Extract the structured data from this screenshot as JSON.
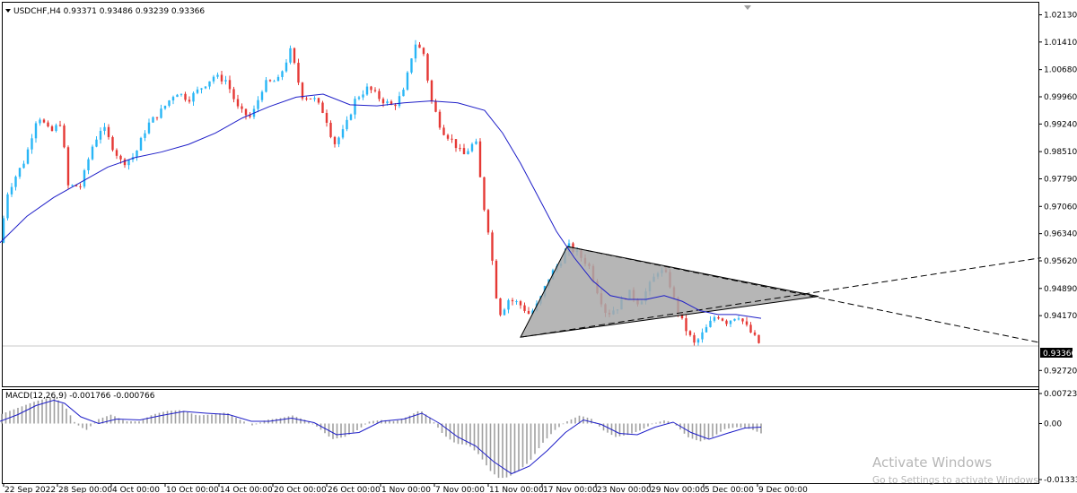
{
  "main_header": "USDCHF,H4  0.93371 0.93486 0.93239 0.93366",
  "macd_header": "MACD(12,26,9) -0.001766 -0.000766",
  "current_price_label": "0.93366",
  "watermark": {
    "title": "Activate Windows",
    "subtitle": "Go to Settings to activate Windows."
  },
  "colors": {
    "bull": "#29b6f6",
    "bear": "#e53935",
    "ma": "#1e1ec8",
    "triangle_fill": "#a9a9a9",
    "macd_hist": "#a0a0a0",
    "macd_signal": "#1e1ec8",
    "grid": "#c8c8c8"
  },
  "chart_data": [
    {
      "type": "candlestick",
      "symbol": "USDCHF",
      "timeframe": "H4",
      "ohlc_last": {
        "open": 0.93371,
        "high": 0.93486,
        "low": 0.93239,
        "close": 0.93366
      },
      "ylim": [
        0.923,
        1.0245
      ],
      "y_ticks": [
        "1.02130",
        "1.01410",
        "1.00680",
        "0.99960",
        "0.99240",
        "0.98510",
        "0.97790",
        "0.97060",
        "0.96340",
        "0.95620",
        "0.94890",
        "0.94170",
        "0.93366",
        "0.92720"
      ],
      "x_tick_labels": [
        "22 Sep 2022",
        "28 Sep 00:00",
        "4 Oct 00:00",
        "10 Oct 00:00",
        "14 Oct 00:00",
        "20 Oct 00:00",
        "26 Oct 00:00",
        "1 Nov 00:00",
        "7 Nov 00:00",
        "11 Nov 00:00",
        "17 Nov 00:00",
        "23 Nov 00:00",
        "29 Nov 00:00",
        "5 Dec 00:00",
        "9 Dec 00:00"
      ],
      "price_path": [
        [
          0,
          0.961
        ],
        [
          8,
          0.974
        ],
        [
          16,
          0.978
        ],
        [
          28,
          0.983
        ],
        [
          42,
          0.995
        ],
        [
          56,
          0.99
        ],
        [
          68,
          0.993
        ],
        [
          76,
          0.976
        ],
        [
          90,
          0.976
        ],
        [
          102,
          0.986
        ],
        [
          114,
          0.992
        ],
        [
          124,
          0.987
        ],
        [
          136,
          0.982
        ],
        [
          150,
          0.984
        ],
        [
          164,
          0.992
        ],
        [
          180,
          0.996
        ],
        [
          196,
          1.001
        ],
        [
          210,
          0.999
        ],
        [
          224,
          1.002
        ],
        [
          238,
          1.005
        ],
        [
          252,
          1.004
        ],
        [
          266,
          0.996
        ],
        [
          280,
          0.994
        ],
        [
          294,
          1.003
        ],
        [
          310,
          1.004
        ],
        [
          324,
          1.012
        ],
        [
          336,
          1.0
        ],
        [
          350,
          0.999
        ],
        [
          362,
          0.995
        ],
        [
          372,
          0.987
        ],
        [
          384,
          0.991
        ],
        [
          396,
          0.999
        ],
        [
          410,
          1.002
        ],
        [
          424,
          0.999
        ],
        [
          438,
          0.997
        ],
        [
          450,
          1.001
        ],
        [
          462,
          1.014
        ],
        [
          472,
          1.011
        ],
        [
          480,
          0.999
        ],
        [
          492,
          0.991
        ],
        [
          504,
          0.988
        ],
        [
          516,
          0.984
        ],
        [
          530,
          0.988
        ],
        [
          538,
          0.972
        ],
        [
          546,
          0.962
        ],
        [
          552,
          0.948
        ],
        [
          558,
          0.942
        ],
        [
          566,
          0.946
        ],
        [
          578,
          0.945
        ],
        [
          590,
          0.942
        ],
        [
          600,
          0.945
        ],
        [
          612,
          0.952
        ],
        [
          624,
          0.956
        ],
        [
          634,
          0.96
        ],
        [
          644,
          0.958
        ],
        [
          656,
          0.955
        ],
        [
          666,
          0.948
        ],
        [
          676,
          0.942
        ],
        [
          688,
          0.944
        ],
        [
          700,
          0.948
        ],
        [
          712,
          0.945
        ],
        [
          722,
          0.949
        ],
        [
          734,
          0.954
        ],
        [
          744,
          0.952
        ],
        [
          752,
          0.945
        ],
        [
          762,
          0.939
        ],
        [
          774,
          0.934
        ],
        [
          786,
          0.938
        ],
        [
          798,
          0.942
        ],
        [
          810,
          0.94
        ],
        [
          822,
          0.942
        ],
        [
          834,
          0.938
        ],
        [
          848,
          0.9337
        ]
      ],
      "moving_average": [
        [
          0,
          0.961
        ],
        [
          30,
          0.968
        ],
        [
          60,
          0.973
        ],
        [
          90,
          0.977
        ],
        [
          120,
          0.981
        ],
        [
          150,
          0.9835
        ],
        [
          180,
          0.985
        ],
        [
          210,
          0.987
        ],
        [
          240,
          0.99
        ],
        [
          270,
          0.994
        ],
        [
          300,
          0.997
        ],
        [
          330,
          0.9995
        ],
        [
          360,
          1.0003
        ],
        [
          390,
          0.9975
        ],
        [
          420,
          0.9972
        ],
        [
          450,
          0.998
        ],
        [
          480,
          0.9985
        ],
        [
          510,
          0.998
        ],
        [
          540,
          0.996
        ],
        [
          560,
          0.99
        ],
        [
          580,
          0.982
        ],
        [
          600,
          0.973
        ],
        [
          620,
          0.964
        ],
        [
          640,
          0.957
        ],
        [
          660,
          0.951
        ],
        [
          680,
          0.947
        ],
        [
          700,
          0.946
        ],
        [
          720,
          0.946
        ],
        [
          740,
          0.947
        ],
        [
          760,
          0.9455
        ],
        [
          780,
          0.943
        ],
        [
          800,
          0.942
        ],
        [
          820,
          0.942
        ],
        [
          848,
          0.941
        ]
      ],
      "triangle": {
        "apex_high": [
          632,
          0.96
        ],
        "apex_low": [
          580,
          0.936
        ],
        "convergence": [
          912,
          0.9468
        ]
      },
      "trendline_upper_ext": {
        "from": [
          632,
          0.96
        ],
        "to": [
          1160,
          0.9345
        ]
      },
      "trendline_lower_ext": {
        "from": [
          580,
          0.936
        ],
        "to": [
          1160,
          0.957
        ]
      }
    },
    {
      "type": "macd",
      "params": "12,26,9",
      "values": {
        "main": -0.001766,
        "signal": -0.000766
      },
      "ylim": [
        -0.0133,
        0.0075
      ],
      "y_ticks": [
        "0.007232",
        "0.00",
        "-0.013335"
      ],
      "histogram_path": [
        [
          0,
          0.002
        ],
        [
          20,
          0.0035
        ],
        [
          40,
          0.005
        ],
        [
          60,
          0.006
        ],
        [
          72,
          0.004
        ],
        [
          84,
          0.0
        ],
        [
          96,
          -0.0015
        ],
        [
          110,
          0.001
        ],
        [
          124,
          0.002
        ],
        [
          140,
          0.0005
        ],
        [
          156,
          0.0005
        ],
        [
          170,
          0.002
        ],
        [
          186,
          0.0028
        ],
        [
          202,
          0.003
        ],
        [
          220,
          0.0018
        ],
        [
          236,
          0.002
        ],
        [
          252,
          0.0025
        ],
        [
          266,
          0.001
        ],
        [
          282,
          -0.0005
        ],
        [
          296,
          0.0008
        ],
        [
          312,
          0.0012
        ],
        [
          326,
          0.0018
        ],
        [
          340,
          0.0008
        ],
        [
          354,
          -0.0008
        ],
        [
          370,
          -0.0035
        ],
        [
          384,
          -0.003
        ],
        [
          398,
          -0.0015
        ],
        [
          412,
          0.0005
        ],
        [
          426,
          0.0008
        ],
        [
          440,
          0.0005
        ],
        [
          454,
          0.0015
        ],
        [
          468,
          0.003
        ],
        [
          480,
          0.0012
        ],
        [
          494,
          -0.0025
        ],
        [
          508,
          -0.0045
        ],
        [
          522,
          -0.0048
        ],
        [
          534,
          -0.007
        ],
        [
          546,
          -0.0105
        ],
        [
          556,
          -0.0122
        ],
        [
          566,
          -0.012
        ],
        [
          578,
          -0.0105
        ],
        [
          590,
          -0.0085
        ],
        [
          604,
          -0.0045
        ],
        [
          618,
          -0.0015
        ],
        [
          632,
          0.0005
        ],
        [
          646,
          0.0018
        ],
        [
          660,
          0.001
        ],
        [
          672,
          -0.0015
        ],
        [
          686,
          -0.003
        ],
        [
          700,
          -0.0025
        ],
        [
          714,
          -0.0015
        ],
        [
          728,
          0.0
        ],
        [
          742,
          0.0008
        ],
        [
          754,
          -0.0005
        ],
        [
          766,
          -0.003
        ],
        [
          780,
          -0.004
        ],
        [
          794,
          -0.003
        ],
        [
          808,
          -0.0012
        ],
        [
          822,
          -0.0008
        ],
        [
          836,
          -0.0012
        ],
        [
          848,
          -0.0022
        ]
      ],
      "signal_path": [
        [
          0,
          0.0005
        ],
        [
          20,
          0.002
        ],
        [
          40,
          0.004
        ],
        [
          60,
          0.0052
        ],
        [
          72,
          0.0045
        ],
        [
          90,
          0.0015
        ],
        [
          110,
          0.0
        ],
        [
          130,
          0.001
        ],
        [
          156,
          0.0008
        ],
        [
          180,
          0.0018
        ],
        [
          205,
          0.0027
        ],
        [
          230,
          0.0023
        ],
        [
          255,
          0.002
        ],
        [
          280,
          0.0005
        ],
        [
          300,
          0.0005
        ],
        [
          325,
          0.0012
        ],
        [
          350,
          0.0002
        ],
        [
          375,
          -0.0025
        ],
        [
          400,
          -0.002
        ],
        [
          425,
          0.0005
        ],
        [
          450,
          0.001
        ],
        [
          470,
          0.0023
        ],
        [
          490,
          0.0
        ],
        [
          510,
          -0.003
        ],
        [
          530,
          -0.005
        ],
        [
          550,
          -0.0085
        ],
        [
          570,
          -0.0112
        ],
        [
          590,
          -0.0095
        ],
        [
          610,
          -0.006
        ],
        [
          630,
          -0.002
        ],
        [
          650,
          0.0008
        ],
        [
          670,
          -0.0002
        ],
        [
          690,
          -0.0022
        ],
        [
          710,
          -0.0025
        ],
        [
          730,
          -0.0008
        ],
        [
          750,
          0.0003
        ],
        [
          770,
          -0.002
        ],
        [
          790,
          -0.0035
        ],
        [
          810,
          -0.0022
        ],
        [
          830,
          -0.001
        ],
        [
          848,
          -0.0008
        ]
      ]
    }
  ]
}
